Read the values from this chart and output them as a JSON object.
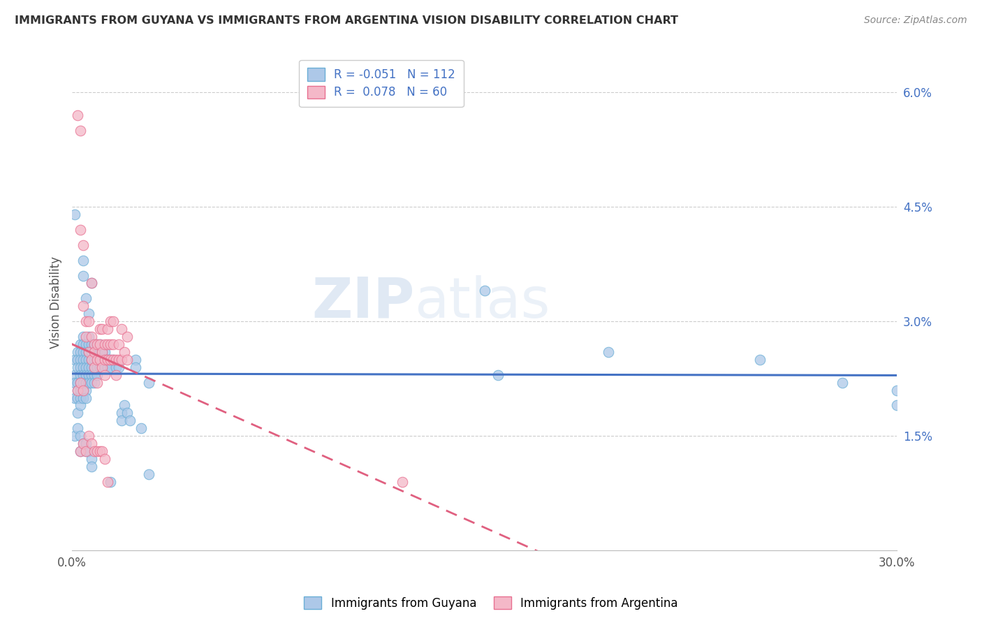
{
  "title": "IMMIGRANTS FROM GUYANA VS IMMIGRANTS FROM ARGENTINA VISION DISABILITY CORRELATION CHART",
  "source": "Source: ZipAtlas.com",
  "ylabel": "Vision Disability",
  "xlim": [
    0.0,
    0.3
  ],
  "ylim": [
    0.0,
    0.065
  ],
  "xticks": [
    0.0,
    0.3
  ],
  "xticklabels": [
    "0.0%",
    "30.0%"
  ],
  "yticks_right": [
    0.015,
    0.03,
    0.045,
    0.06
  ],
  "yticklabels_right": [
    "1.5%",
    "3.0%",
    "4.5%",
    "6.0%"
  ],
  "watermark_zip": "ZIP",
  "watermark_atlas": "atlas",
  "guyana_color": "#adc8e8",
  "guyana_edge_color": "#6aaed6",
  "argentina_color": "#f4b8c8",
  "argentina_edge_color": "#e87090",
  "guyana_line_color": "#4472c4",
  "argentina_line_color": "#e06080",
  "legend_guyana_R": "-0.051",
  "legend_guyana_N": "112",
  "legend_argentina_R": "0.078",
  "legend_argentina_N": "60",
  "legend_label_guyana": "Immigrants from Guyana",
  "legend_label_argentina": "Immigrants from Argentina",
  "background_color": "#ffffff",
  "grid_color": "#cccccc",
  "guyana_data": [
    [
      0.001,
      0.025
    ],
    [
      0.001,
      0.023
    ],
    [
      0.001,
      0.022
    ],
    [
      0.001,
      0.02
    ],
    [
      0.001,
      0.044
    ],
    [
      0.002,
      0.026
    ],
    [
      0.002,
      0.025
    ],
    [
      0.002,
      0.024
    ],
    [
      0.002,
      0.022
    ],
    [
      0.002,
      0.021
    ],
    [
      0.002,
      0.02
    ],
    [
      0.002,
      0.018
    ],
    [
      0.003,
      0.027
    ],
    [
      0.003,
      0.026
    ],
    [
      0.003,
      0.025
    ],
    [
      0.003,
      0.024
    ],
    [
      0.003,
      0.023
    ],
    [
      0.003,
      0.022
    ],
    [
      0.003,
      0.021
    ],
    [
      0.003,
      0.02
    ],
    [
      0.003,
      0.019
    ],
    [
      0.004,
      0.028
    ],
    [
      0.004,
      0.027
    ],
    [
      0.004,
      0.026
    ],
    [
      0.004,
      0.025
    ],
    [
      0.004,
      0.024
    ],
    [
      0.004,
      0.023
    ],
    [
      0.004,
      0.022
    ],
    [
      0.004,
      0.021
    ],
    [
      0.004,
      0.02
    ],
    [
      0.004,
      0.038
    ],
    [
      0.004,
      0.036
    ],
    [
      0.005,
      0.027
    ],
    [
      0.005,
      0.026
    ],
    [
      0.005,
      0.025
    ],
    [
      0.005,
      0.024
    ],
    [
      0.005,
      0.023
    ],
    [
      0.005,
      0.022
    ],
    [
      0.005,
      0.021
    ],
    [
      0.005,
      0.02
    ],
    [
      0.005,
      0.033
    ],
    [
      0.006,
      0.028
    ],
    [
      0.006,
      0.027
    ],
    [
      0.006,
      0.026
    ],
    [
      0.006,
      0.025
    ],
    [
      0.006,
      0.024
    ],
    [
      0.006,
      0.023
    ],
    [
      0.006,
      0.022
    ],
    [
      0.006,
      0.031
    ],
    [
      0.007,
      0.027
    ],
    [
      0.007,
      0.026
    ],
    [
      0.007,
      0.025
    ],
    [
      0.007,
      0.024
    ],
    [
      0.007,
      0.023
    ],
    [
      0.007,
      0.022
    ],
    [
      0.007,
      0.035
    ],
    [
      0.008,
      0.027
    ],
    [
      0.008,
      0.026
    ],
    [
      0.008,
      0.025
    ],
    [
      0.008,
      0.024
    ],
    [
      0.008,
      0.023
    ],
    [
      0.008,
      0.022
    ],
    [
      0.009,
      0.027
    ],
    [
      0.009,
      0.026
    ],
    [
      0.009,
      0.025
    ],
    [
      0.009,
      0.024
    ],
    [
      0.009,
      0.023
    ],
    [
      0.01,
      0.027
    ],
    [
      0.01,
      0.026
    ],
    [
      0.01,
      0.025
    ],
    [
      0.01,
      0.024
    ],
    [
      0.011,
      0.026
    ],
    [
      0.011,
      0.025
    ],
    [
      0.011,
      0.024
    ],
    [
      0.012,
      0.026
    ],
    [
      0.012,
      0.025
    ],
    [
      0.012,
      0.024
    ],
    [
      0.013,
      0.025
    ],
    [
      0.013,
      0.024
    ],
    [
      0.014,
      0.025
    ],
    [
      0.014,
      0.024
    ],
    [
      0.015,
      0.025
    ],
    [
      0.016,
      0.024
    ],
    [
      0.017,
      0.024
    ],
    [
      0.018,
      0.018
    ],
    [
      0.018,
      0.017
    ],
    [
      0.019,
      0.019
    ],
    [
      0.02,
      0.018
    ],
    [
      0.021,
      0.017
    ],
    [
      0.023,
      0.025
    ],
    [
      0.023,
      0.024
    ],
    [
      0.025,
      0.016
    ],
    [
      0.028,
      0.022
    ],
    [
      0.028,
      0.01
    ],
    [
      0.15,
      0.034
    ],
    [
      0.195,
      0.026
    ],
    [
      0.25,
      0.025
    ],
    [
      0.28,
      0.022
    ],
    [
      0.155,
      0.023
    ],
    [
      0.3,
      0.021
    ],
    [
      0.3,
      0.019
    ],
    [
      0.001,
      0.015
    ],
    [
      0.002,
      0.016
    ],
    [
      0.003,
      0.015
    ],
    [
      0.003,
      0.013
    ],
    [
      0.004,
      0.014
    ],
    [
      0.005,
      0.014
    ],
    [
      0.005,
      0.013
    ],
    [
      0.006,
      0.013
    ],
    [
      0.007,
      0.012
    ],
    [
      0.007,
      0.011
    ],
    [
      0.014,
      0.009
    ]
  ],
  "argentina_data": [
    [
      0.002,
      0.057
    ],
    [
      0.003,
      0.055
    ],
    [
      0.003,
      0.042
    ],
    [
      0.004,
      0.04
    ],
    [
      0.004,
      0.032
    ],
    [
      0.005,
      0.03
    ],
    [
      0.005,
      0.028
    ],
    [
      0.006,
      0.03
    ],
    [
      0.006,
      0.026
    ],
    [
      0.007,
      0.028
    ],
    [
      0.007,
      0.025
    ],
    [
      0.007,
      0.035
    ],
    [
      0.008,
      0.027
    ],
    [
      0.008,
      0.026
    ],
    [
      0.008,
      0.024
    ],
    [
      0.009,
      0.027
    ],
    [
      0.009,
      0.025
    ],
    [
      0.009,
      0.022
    ],
    [
      0.01,
      0.029
    ],
    [
      0.01,
      0.027
    ],
    [
      0.01,
      0.025
    ],
    [
      0.011,
      0.029
    ],
    [
      0.011,
      0.026
    ],
    [
      0.011,
      0.024
    ],
    [
      0.012,
      0.027
    ],
    [
      0.012,
      0.025
    ],
    [
      0.012,
      0.023
    ],
    [
      0.013,
      0.029
    ],
    [
      0.013,
      0.027
    ],
    [
      0.013,
      0.025
    ],
    [
      0.014,
      0.03
    ],
    [
      0.014,
      0.027
    ],
    [
      0.014,
      0.025
    ],
    [
      0.015,
      0.03
    ],
    [
      0.015,
      0.027
    ],
    [
      0.015,
      0.025
    ],
    [
      0.016,
      0.025
    ],
    [
      0.016,
      0.023
    ],
    [
      0.017,
      0.027
    ],
    [
      0.017,
      0.025
    ],
    [
      0.018,
      0.029
    ],
    [
      0.018,
      0.025
    ],
    [
      0.019,
      0.026
    ],
    [
      0.02,
      0.028
    ],
    [
      0.02,
      0.025
    ],
    [
      0.002,
      0.021
    ],
    [
      0.003,
      0.022
    ],
    [
      0.004,
      0.021
    ],
    [
      0.003,
      0.013
    ],
    [
      0.004,
      0.014
    ],
    [
      0.005,
      0.013
    ],
    [
      0.006,
      0.015
    ],
    [
      0.007,
      0.014
    ],
    [
      0.008,
      0.013
    ],
    [
      0.009,
      0.013
    ],
    [
      0.01,
      0.013
    ],
    [
      0.011,
      0.013
    ],
    [
      0.012,
      0.012
    ],
    [
      0.013,
      0.009
    ],
    [
      0.12,
      0.009
    ]
  ]
}
